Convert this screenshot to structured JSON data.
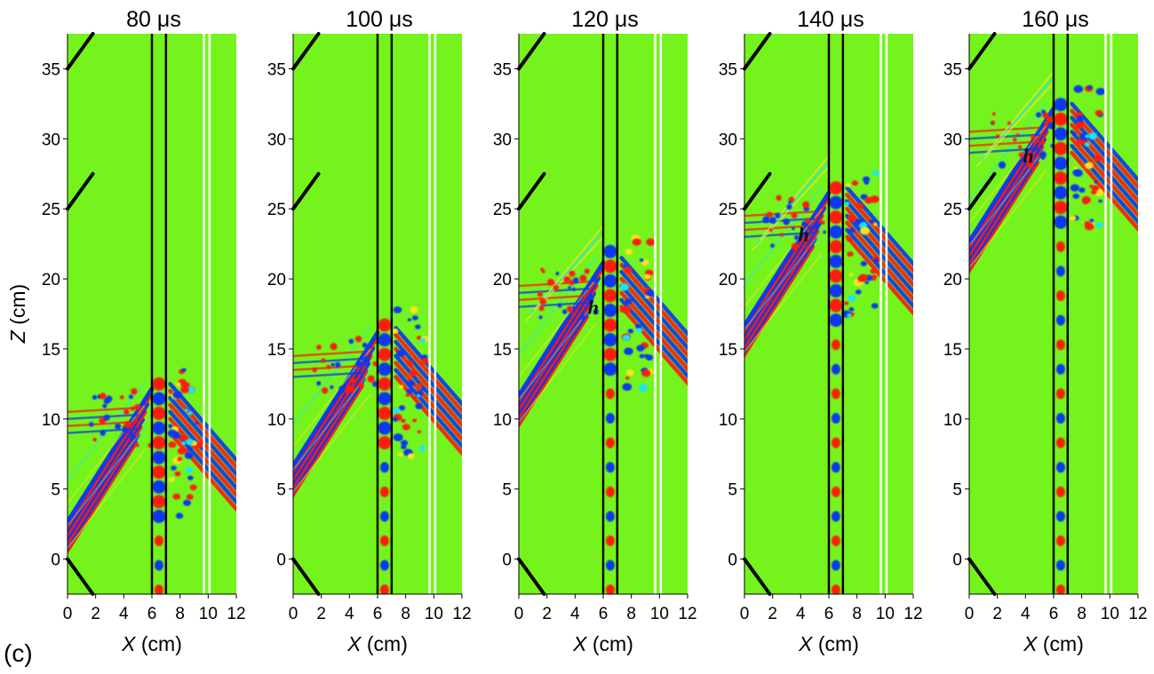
{
  "figure_label": "(c)",
  "colors": {
    "background": "#74f41c",
    "positive": "#ff1a0a",
    "negative": "#0a37f2",
    "positive_weak": "#ffe21a",
    "negative_weak": "#19e6ff",
    "guide_line": "#000000",
    "gap_line": "#ffffff"
  },
  "chart_data": {
    "type": "heatmap",
    "description_axes": {
      "xlabel_symbol": "X",
      "xlabel_unit": "(cm)",
      "ylabel_symbol": "Z",
      "ylabel_unit": "(cm)",
      "xlim": [
        0,
        12
      ],
      "ylim": [
        -2.5,
        37.5
      ],
      "xticks": [
        0,
        2,
        4,
        6,
        8,
        10,
        12
      ],
      "yticks": [
        0,
        5,
        10,
        15,
        20,
        25,
        30,
        35
      ]
    },
    "guides": {
      "vertical_black_x": [
        6.0,
        7.0
      ],
      "vertical_white_x": [
        9.7,
        10.1
      ],
      "diagonal_segments": [
        {
          "x1": 0,
          "z1": 35,
          "x2": 1.8,
          "z2": 37.5
        },
        {
          "x1": 0,
          "z1": 25,
          "x2": 1.8,
          "z2": 27.5
        },
        {
          "x1": 0,
          "z1": 0,
          "x2": 1.8,
          "z2": -2.5
        }
      ]
    },
    "panels": [
      {
        "time_value": "80",
        "time_unit": "μs",
        "front_z": 12,
        "annotation": ""
      },
      {
        "time_value": "100",
        "time_unit": "μs",
        "front_z": 16,
        "annotation": ""
      },
      {
        "time_value": "120",
        "time_unit": "μs",
        "front_z": 21,
        "annotation": "h",
        "annotation_x": 5.3,
        "annotation_z": 17.5
      },
      {
        "time_value": "140",
        "time_unit": "μs",
        "front_z": 26,
        "annotation": "h",
        "annotation_x": 4.2,
        "annotation_z": 22.7
      },
      {
        "time_value": "160",
        "time_unit": "μs",
        "front_z": 32,
        "annotation": "h",
        "annotation_x": 4.2,
        "annotation_z": 28.3
      }
    ]
  }
}
